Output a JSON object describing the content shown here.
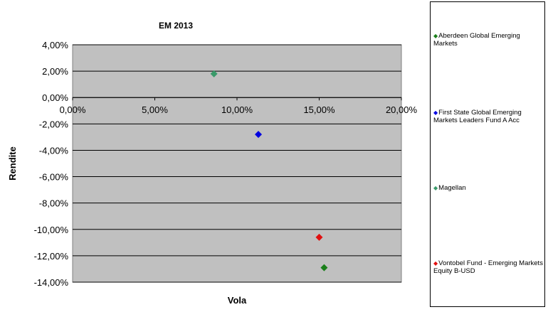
{
  "chart_data": {
    "type": "scatter",
    "title": "EM 2013",
    "xlabel": "Vola",
    "ylabel": "Rendite",
    "xlim": [
      0,
      20
    ],
    "ylim": [
      -14,
      4
    ],
    "x_ticks": [
      "0,00%",
      "5,00%",
      "10,00%",
      "15,00%",
      "20,00%"
    ],
    "y_ticks": [
      "4,00%",
      "2,00%",
      "0,00%",
      "-2,00%",
      "-4,00%",
      "-6,00%",
      "-8,00%",
      "-10,00%",
      "-12,00%",
      "-14,00%"
    ],
    "grid": true,
    "legend_position": "right",
    "plot_background": "#c0c0c0",
    "series": [
      {
        "name": "Aberdeen Global Emerging Markets",
        "color": "#1a7f1a",
        "points": [
          {
            "x": 15.3,
            "y": -12.9
          }
        ]
      },
      {
        "name": "First State Global Emerging Markets Leaders Fund A Acc",
        "color": "#0000e0",
        "points": [
          {
            "x": 11.3,
            "y": -2.8
          }
        ]
      },
      {
        "name": "Magellan",
        "color": "#3a9a6a",
        "points": [
          {
            "x": 8.6,
            "y": 1.8
          }
        ]
      },
      {
        "name": "Vontobel Fund - Emerging Markets Equity B-USD",
        "color": "#e01010",
        "points": [
          {
            "x": 15.0,
            "y": -10.6
          }
        ]
      }
    ]
  }
}
